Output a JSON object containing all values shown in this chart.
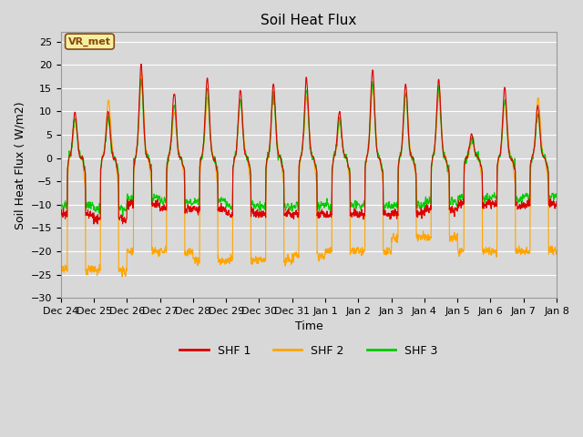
{
  "title": "Soil Heat Flux",
  "xlabel": "Time",
  "ylabel": "Soil Heat Flux ( W/m2)",
  "ylim": [
    -30,
    27
  ],
  "yticks": [
    -30,
    -25,
    -20,
    -15,
    -10,
    -5,
    0,
    5,
    10,
    15,
    20,
    25
  ],
  "colors": {
    "SHF 1": "#dd0000",
    "SHF 2": "#ffa500",
    "SHF 3": "#00cc00"
  },
  "legend_labels": [
    "SHF 1",
    "SHF 2",
    "SHF 3"
  ],
  "annotation_text": "VR_met",
  "annotation_color": "#8b4513",
  "annotation_bg": "#f5f0a0",
  "fig_bg": "#d8d8d8",
  "plot_bg": "#d8d8d8",
  "grid_color": "#ffffff",
  "n_points": 2160,
  "days": 15,
  "xtick_labels": [
    "Dec 24",
    "Dec 25",
    "Dec 26",
    "Dec 27",
    "Dec 28",
    "Dec 29",
    "Dec 30",
    "Dec 31",
    "Jan 1",
    "Jan 2",
    "Jan 3",
    "Jan 4",
    "Jan 5",
    "Jan 6",
    "Jan 7",
    "Jan 8"
  ],
  "linewidth": 0.8,
  "title_fontsize": 11,
  "label_fontsize": 9,
  "tick_fontsize": 8
}
